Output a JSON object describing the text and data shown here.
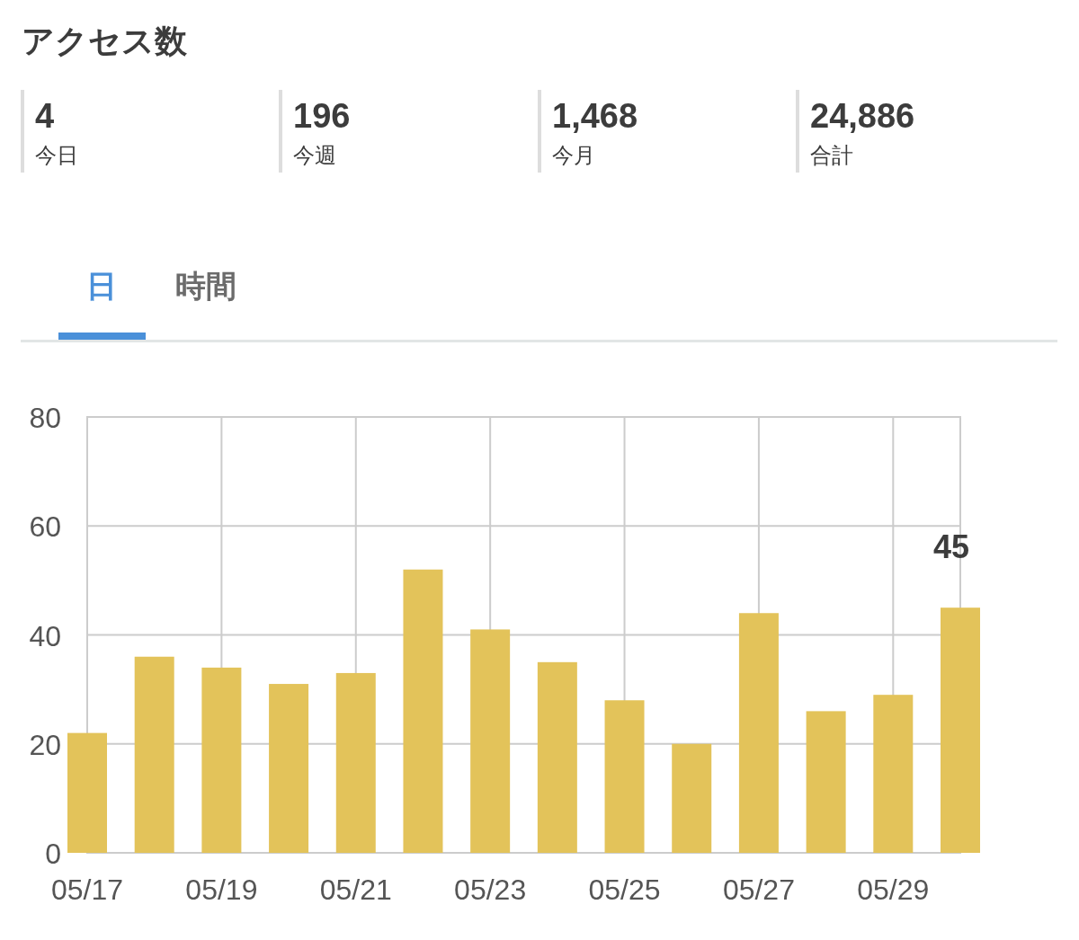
{
  "chart_data": {
    "type": "bar",
    "title": "アクセス数",
    "annotations": [
      "4",
      "今日",
      "196",
      "今週",
      "1,468",
      "今月",
      "24,886",
      "合計",
      "日",
      "時間"
    ],
    "categories": [
      "05/17",
      null,
      "05/19",
      null,
      "05/21",
      null,
      "05/23",
      null,
      "05/25",
      null,
      "05/27",
      null,
      "05/29",
      null
    ],
    "values": [
      22,
      36,
      34,
      31,
      33,
      52,
      41,
      35,
      28,
      20,
      44,
      26,
      29,
      45
    ],
    "value_labels": [
      null,
      null,
      null,
      null,
      null,
      null,
      null,
      null,
      null,
      null,
      null,
      null,
      null,
      "45"
    ],
    "color": "#e3c35a",
    "ylim": [
      0,
      80
    ],
    "yticks": [
      0,
      20,
      40,
      60,
      80
    ],
    "grid": true
  }
}
